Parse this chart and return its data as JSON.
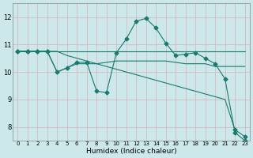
{
  "bg_color": "#cce8ea",
  "grid_color": "#b0d8da",
  "line_color": "#1a7a6e",
  "xlabel": "Humidex (Indice chaleur)",
  "xlim": [
    -0.5,
    23.5
  ],
  "ylim": [
    7.5,
    12.5
  ],
  "yticks": [
    8,
    9,
    10,
    11,
    12
  ],
  "xticks": [
    0,
    1,
    2,
    3,
    4,
    5,
    6,
    7,
    8,
    9,
    10,
    11,
    12,
    13,
    14,
    15,
    16,
    17,
    18,
    19,
    20,
    21,
    22,
    23
  ],
  "line1_x": [
    0,
    1,
    2,
    3,
    4,
    5,
    6,
    7,
    8,
    9,
    10,
    11,
    12,
    13,
    14,
    15,
    16,
    17,
    18,
    19,
    20,
    21,
    22,
    23
  ],
  "line1_y": [
    10.75,
    10.75,
    10.75,
    10.75,
    10.75,
    10.75,
    10.75,
    10.75,
    10.75,
    10.75,
    10.75,
    10.75,
    10.75,
    10.75,
    10.75,
    10.75,
    10.75,
    10.75,
    10.75,
    10.75,
    10.75,
    10.75,
    10.75,
    10.75
  ],
  "line2_x": [
    0,
    1,
    2,
    3,
    4,
    5,
    6,
    7,
    8,
    9,
    10,
    11,
    12,
    13,
    14,
    15,
    16,
    17,
    18,
    19,
    20,
    21,
    22,
    23
  ],
  "line2_y": [
    10.75,
    10.75,
    10.75,
    10.75,
    10.0,
    10.15,
    10.3,
    10.3,
    10.3,
    10.35,
    10.4,
    10.4,
    10.4,
    10.4,
    10.4,
    10.4,
    10.35,
    10.3,
    10.3,
    10.3,
    10.2,
    10.2,
    10.2,
    10.2
  ],
  "line3_x": [
    0,
    1,
    2,
    3,
    4,
    5,
    6,
    7,
    8,
    9,
    10,
    11,
    12,
    13,
    14,
    15,
    16,
    17,
    18,
    19,
    20,
    21,
    22,
    23
  ],
  "line3_y": [
    10.75,
    10.75,
    10.75,
    10.75,
    10.0,
    10.15,
    10.35,
    10.35,
    9.3,
    9.25,
    10.7,
    11.2,
    11.85,
    11.95,
    11.6,
    11.05,
    10.6,
    10.65,
    10.7,
    10.5,
    10.3,
    9.75,
    7.8,
    7.5
  ],
  "line4_x": [
    0,
    1,
    2,
    3,
    4,
    5,
    6,
    7,
    8,
    9,
    10,
    11,
    12,
    13,
    14,
    15,
    16,
    17,
    18,
    19,
    20,
    21,
    22,
    23
  ],
  "line4_y": [
    10.75,
    10.75,
    10.75,
    10.75,
    10.75,
    10.6,
    10.5,
    10.4,
    10.3,
    10.2,
    10.1,
    10.0,
    9.9,
    9.8,
    9.7,
    9.6,
    9.5,
    9.4,
    9.3,
    9.2,
    9.1,
    9.0,
    7.9,
    7.65
  ]
}
